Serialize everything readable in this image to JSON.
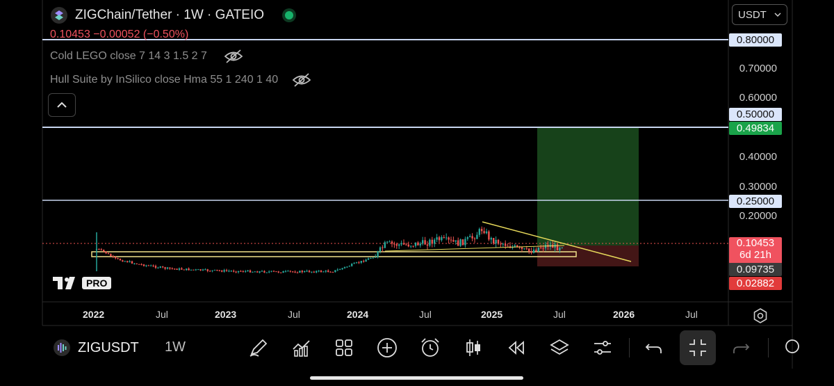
{
  "header": {
    "title": "ZIGChain/Tether · 1W · GATEIO",
    "status_color": "#17b36b",
    "price_change": "0.10453 −0.00052 (−0.50%)",
    "currency": "USDT",
    "chevron_icon": "chevron-down-icon"
  },
  "indicators": [
    {
      "label": "Cold LEGO close 7 14 3 1.5 2 7",
      "icon": "eye-off-icon"
    },
    {
      "label": "Hull Suite by InSilico close Hma 55 1 240 1 40",
      "icon": "eye-off-icon"
    }
  ],
  "price_axis": {
    "ticks": [
      "0.70000",
      "0.60000",
      "0.40000",
      "0.30000",
      "0.20000"
    ],
    "boxes": {
      "level_080": "0.80000",
      "level_050": "0.50000",
      "target": "0.49834",
      "level_025": "0.25000",
      "current": "0.10453",
      "countdown": "6d 21h",
      "entry": "0.09735",
      "stop": "0.02882"
    }
  },
  "time_axis": {
    "labels": [
      {
        "text": "2022",
        "bold": true
      },
      {
        "text": "Jul",
        "bold": false
      },
      {
        "text": "2023",
        "bold": true
      },
      {
        "text": "Jul",
        "bold": false
      },
      {
        "text": "2024",
        "bold": true
      },
      {
        "text": "Jul",
        "bold": false
      },
      {
        "text": "2025",
        "bold": true
      },
      {
        "text": "Jul",
        "bold": false
      },
      {
        "text": "2026",
        "bold": true
      },
      {
        "text": "Jul",
        "bold": false
      }
    ]
  },
  "watermark": "PRO",
  "bottom_bar": {
    "symbol": "ZIGUSDT",
    "timeframe": "1W",
    "tools": [
      "draw-icon",
      "indicators-icon",
      "layouts-icon",
      "add-icon",
      "alert-icon",
      "candles-icon",
      "replay-icon",
      "layers-icon",
      "settings-icon",
      "undo-icon",
      "fullscreen-exit-icon",
      "redo-icon"
    ]
  },
  "colors": {
    "up": "#26a69a",
    "down": "#ef5350",
    "level_line": "#b4c6e7",
    "target_zone": "#1b5e20",
    "stop_zone": "#5d1a1a",
    "trendline": "#e6d85a",
    "support_box": "#f0e08a"
  }
}
